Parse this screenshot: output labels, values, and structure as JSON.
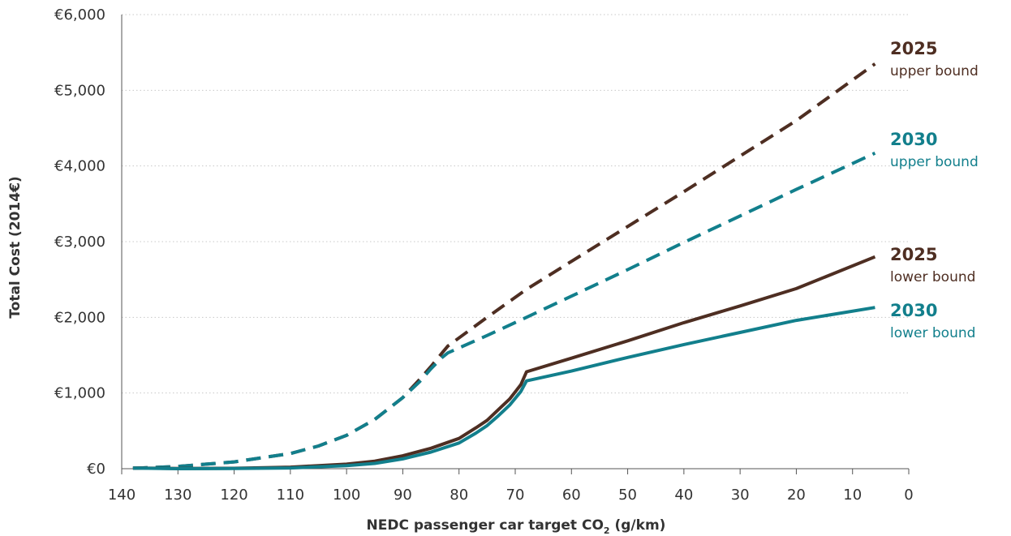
{
  "chart_data": {
    "type": "line",
    "title": "",
    "xlabel": "NEDC passenger car target CO",
    "xlabel_sub": "2",
    "xlabel_unit": " (g/km)",
    "ylabel": "Total Cost (2014€)",
    "xlim": [
      140,
      0
    ],
    "ylim": [
      0,
      6000
    ],
    "x_reversed": true,
    "grid": "horizontal dotted",
    "legend": "labels at line ends (right)",
    "x_ticks": [
      140,
      130,
      120,
      110,
      100,
      90,
      80,
      70,
      60,
      50,
      40,
      30,
      20,
      10,
      0
    ],
    "x_tick_labels": [
      "140",
      "130",
      "120",
      "110",
      "100",
      "90",
      "80",
      "70",
      "60",
      "50",
      "40",
      "30",
      "20",
      "10",
      "0"
    ],
    "y_ticks": [
      0,
      1000,
      2000,
      3000,
      4000,
      5000,
      6000
    ],
    "y_tick_labels": [
      "€0",
      "€1,000",
      "€2,000",
      "€3,000",
      "€4,000",
      "€5,000",
      "€6,000"
    ],
    "series": [
      {
        "year": "2025",
        "bound": "upper bound",
        "color": "#4e2e22",
        "style": "dashed",
        "x": [
          138,
          130,
          120,
          110,
          105,
          100,
          95,
          90,
          87,
          85,
          83,
          82,
          75,
          68,
          60,
          50,
          40,
          30,
          20,
          6
        ],
        "y": [
          5,
          30,
          90,
          200,
          300,
          440,
          650,
          940,
          1180,
          1350,
          1530,
          1620,
          2000,
          2370,
          2740,
          3200,
          3660,
          4130,
          4600,
          5350
        ]
      },
      {
        "year": "2030",
        "bound": "upper bound",
        "color": "#127f8c",
        "style": "dashed",
        "x": [
          138,
          130,
          120,
          110,
          105,
          100,
          95,
          90,
          87,
          85,
          83,
          82,
          75,
          68,
          60,
          50,
          40,
          30,
          20,
          6
        ],
        "y": [
          5,
          30,
          90,
          200,
          300,
          440,
          650,
          940,
          1150,
          1320,
          1470,
          1530,
          1760,
          2000,
          2280,
          2630,
          2990,
          3340,
          3690,
          4170
        ]
      },
      {
        "year": "2025",
        "bound": "lower bound",
        "color": "#4e2e22",
        "style": "solid",
        "x": [
          138,
          130,
          120,
          110,
          100,
          95,
          90,
          85,
          80,
          77,
          75,
          73,
          71,
          69,
          68,
          60,
          50,
          40,
          30,
          20,
          6
        ],
        "y": [
          10,
          3,
          5,
          20,
          60,
          100,
          170,
          270,
          400,
          540,
          640,
          780,
          920,
          1110,
          1280,
          1460,
          1690,
          1930,
          2150,
          2380,
          2800
        ]
      },
      {
        "year": "2030",
        "bound": "lower bound",
        "color": "#127f8c",
        "style": "solid",
        "x": [
          138,
          130,
          120,
          110,
          100,
          95,
          90,
          85,
          80,
          77,
          75,
          73,
          71,
          69,
          68,
          60,
          50,
          40,
          30,
          20,
          6
        ],
        "y": [
          8,
          0,
          2,
          10,
          40,
          70,
          130,
          220,
          340,
          470,
          570,
          700,
          840,
          1020,
          1160,
          1290,
          1470,
          1640,
          1800,
          1960,
          2130
        ]
      }
    ]
  }
}
